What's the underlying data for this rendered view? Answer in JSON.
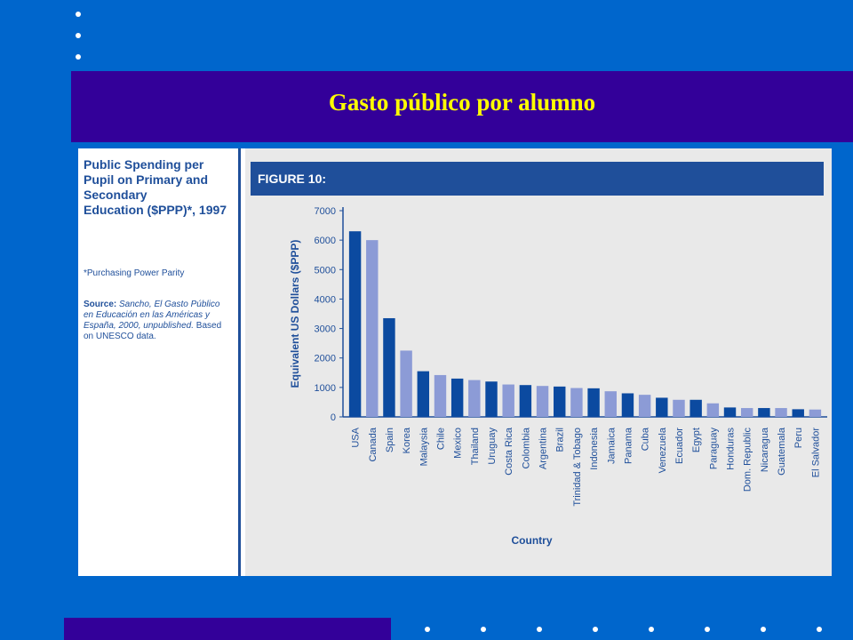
{
  "slide": {
    "title": "Gasto público por alumno"
  },
  "figure": {
    "heading_lines": [
      "Public Spending per",
      "Pupil on Primary and",
      "Secondary",
      "Education ($PPP)*, 1997"
    ],
    "note": "*Purchasing Power Parity",
    "source_label": "Source:",
    "source_text_lines": [
      "Sancho, El Gasto Público",
      "en Educación en las Américas y",
      "España, 2000, unpublished."
    ],
    "source_tail_lines": [
      "Based",
      "on UNESCO data."
    ],
    "figure_label": "FIGURE 10:"
  },
  "colors": {
    "background": "#0066cc",
    "band": "#330099",
    "title": "#ffff00",
    "bar_dark": "#0b4aa0",
    "bar_light": "#8c9bd6",
    "header": "#1f4f9a"
  },
  "chart_data": {
    "type": "bar",
    "title": "",
    "xlabel": "Country",
    "ylabel": "Equivalent US Dollars ($PPP)",
    "ylim": [
      0,
      7000
    ],
    "yticks": [
      0,
      1000,
      2000,
      3000,
      4000,
      5000,
      6000,
      7000
    ],
    "grid": false,
    "categories": [
      "USA",
      "Canada",
      "Spain",
      "Korea",
      "Malaysia",
      "Chile",
      "Mexico",
      "Thailand",
      "Uruguay",
      "Costa Rica",
      "Colombia",
      "Argentina",
      "Brazil",
      "Trinidad & Tobago",
      "Indonesia",
      "Jamaica",
      "Panama",
      "Cuba",
      "Venezuela",
      "Ecuador",
      "Egypt",
      "Paraguay",
      "Honduras",
      "Dom. Republic",
      "Nicaragua",
      "Guatemala",
      "Peru",
      "El Salvador"
    ],
    "values": [
      6300,
      6000,
      3350,
      2250,
      1550,
      1420,
      1300,
      1250,
      1200,
      1100,
      1080,
      1050,
      1030,
      980,
      970,
      870,
      800,
      750,
      650,
      580,
      580,
      460,
      320,
      300,
      300,
      300,
      260,
      250
    ]
  }
}
